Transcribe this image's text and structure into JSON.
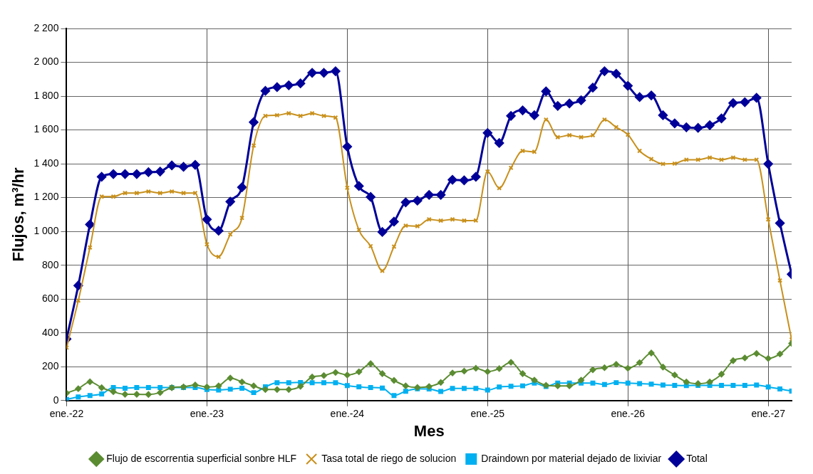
{
  "chart_data": {
    "type": "line",
    "xlabel": "Mes",
    "ylabel": "Flujos, m³/hr",
    "x": [
      "2022-01",
      "2022-02",
      "2022-03",
      "2022-04",
      "2022-05",
      "2022-06",
      "2022-07",
      "2022-08",
      "2022-09",
      "2022-10",
      "2022-11",
      "2022-12",
      "2023-01",
      "2023-02",
      "2023-03",
      "2023-04",
      "2023-05",
      "2023-06",
      "2023-07",
      "2023-08",
      "2023-09",
      "2023-10",
      "2023-11",
      "2023-12",
      "2024-01",
      "2024-02",
      "2024-03",
      "2024-04",
      "2024-05",
      "2024-06",
      "2024-07",
      "2024-08",
      "2024-09",
      "2024-10",
      "2024-11",
      "2024-12",
      "2025-01",
      "2025-02",
      "2025-03",
      "2025-04",
      "2025-05",
      "2025-06",
      "2025-07",
      "2025-08",
      "2025-09",
      "2025-10",
      "2025-11",
      "2025-12",
      "2026-01",
      "2026-02",
      "2026-03",
      "2026-04",
      "2026-05",
      "2026-06",
      "2026-07",
      "2026-08",
      "2026-09",
      "2026-10",
      "2026-11",
      "2026-12",
      "2027-01",
      "2027-02",
      "2027-03"
    ],
    "series": [
      {
        "name": "Flujo de escorrentia superficial sonbre HLF",
        "color": "#5b8c32",
        "marker": "diamond",
        "values": [
          44,
          70,
          111,
          76,
          52,
          37,
          37,
          36,
          47,
          76,
          81,
          92,
          80,
          87,
          133,
          110,
          87,
          65,
          65,
          65,
          84,
          139,
          148,
          166,
          151,
          170,
          218,
          159,
          119,
          87,
          77,
          83,
          107,
          163,
          174,
          191,
          171,
          189,
          226,
          159,
          121,
          90,
          87,
          87,
          121,
          182,
          194,
          214,
          191,
          224,
          281,
          198,
          151,
          110,
          100,
          110,
          156,
          236,
          252,
          278,
          249,
          275,
          338
        ]
      },
      {
        "name": "Tasa total de riego de solucion",
        "color": "#c8901c",
        "marker": "cross",
        "values": [
          313,
          591,
          905,
          1206,
          1206,
          1227,
          1227,
          1236,
          1227,
          1236,
          1227,
          1227,
          924,
          850,
          982,
          1080,
          1508,
          1683,
          1687,
          1698,
          1683,
          1698,
          1683,
          1673,
          1258,
          1009,
          913,
          767,
          910,
          1034,
          1031,
          1071,
          1064,
          1071,
          1064,
          1065,
          1354,
          1256,
          1376,
          1476,
          1471,
          1661,
          1557,
          1569,
          1557,
          1569,
          1661,
          1616,
          1572,
          1476,
          1428,
          1399,
          1401,
          1424,
          1424,
          1436,
          1424,
          1436,
          1424,
          1424,
          1071,
          710,
          361
        ]
      },
      {
        "name": "Draindown por material dejado de lixiviar",
        "color": "#00b0f0",
        "marker": "square",
        "values": [
          7,
          21,
          30,
          39,
          77,
          73,
          77,
          77,
          77,
          77,
          77,
          77,
          65,
          62,
          67,
          73,
          47,
          81,
          105,
          105,
          107,
          105,
          105,
          105,
          89,
          81,
          77,
          74,
          30,
          55,
          70,
          69,
          54,
          72,
          72,
          72,
          62,
          80,
          84,
          87,
          103,
          83,
          103,
          103,
          103,
          103,
          95,
          106,
          103,
          100,
          97,
          92,
          90,
          89,
          90,
          90,
          90,
          90,
          90,
          92,
          80,
          69,
          56
        ]
      },
      {
        "name": "Total",
        "color": "#000099",
        "marker": "diamond",
        "values": [
          364,
          680,
          1041,
          1323,
          1339,
          1339,
          1339,
          1350,
          1354,
          1390,
          1382,
          1394,
          1071,
          1004,
          1176,
          1261,
          1646,
          1831,
          1853,
          1864,
          1875,
          1938,
          1938,
          1947,
          1501,
          1268,
          1204,
          997,
          1058,
          1172,
          1182,
          1216,
          1216,
          1305,
          1302,
          1323,
          1582,
          1523,
          1683,
          1716,
          1687,
          1828,
          1742,
          1757,
          1775,
          1850,
          1947,
          1932,
          1861,
          1794,
          1804,
          1687,
          1639,
          1616,
          1612,
          1628,
          1668,
          1759,
          1764,
          1790,
          1399,
          1049,
          747
        ]
      }
    ],
    "xlim": [
      "2022-01",
      "2027-03"
    ],
    "xticks": [
      {
        "value": "2022-01",
        "label": "ene.-22"
      },
      {
        "value": "2023-01",
        "label": "ene.-23"
      },
      {
        "value": "2024-01",
        "label": "ene.-24"
      },
      {
        "value": "2025-01",
        "label": "ene.-25"
      },
      {
        "value": "2026-01",
        "label": "ene.-26"
      },
      {
        "value": "2027-01",
        "label": "ene.-27"
      }
    ],
    "ylim": [
      0,
      2200
    ],
    "yticks": [
      0,
      200,
      400,
      600,
      800,
      {
        "value": 1000,
        "label": "1 000"
      },
      {
        "value": 1200,
        "label": "1 200"
      },
      {
        "value": 1400,
        "label": "1 400"
      },
      {
        "value": 1600,
        "label": "1 600"
      },
      {
        "value": 1800,
        "label": "1 800"
      },
      {
        "value": 2000,
        "label": "2 000"
      },
      {
        "value": 2200,
        "label": "2 200"
      }
    ],
    "grid": true,
    "legend": "bottom",
    "line_style": "solid"
  }
}
